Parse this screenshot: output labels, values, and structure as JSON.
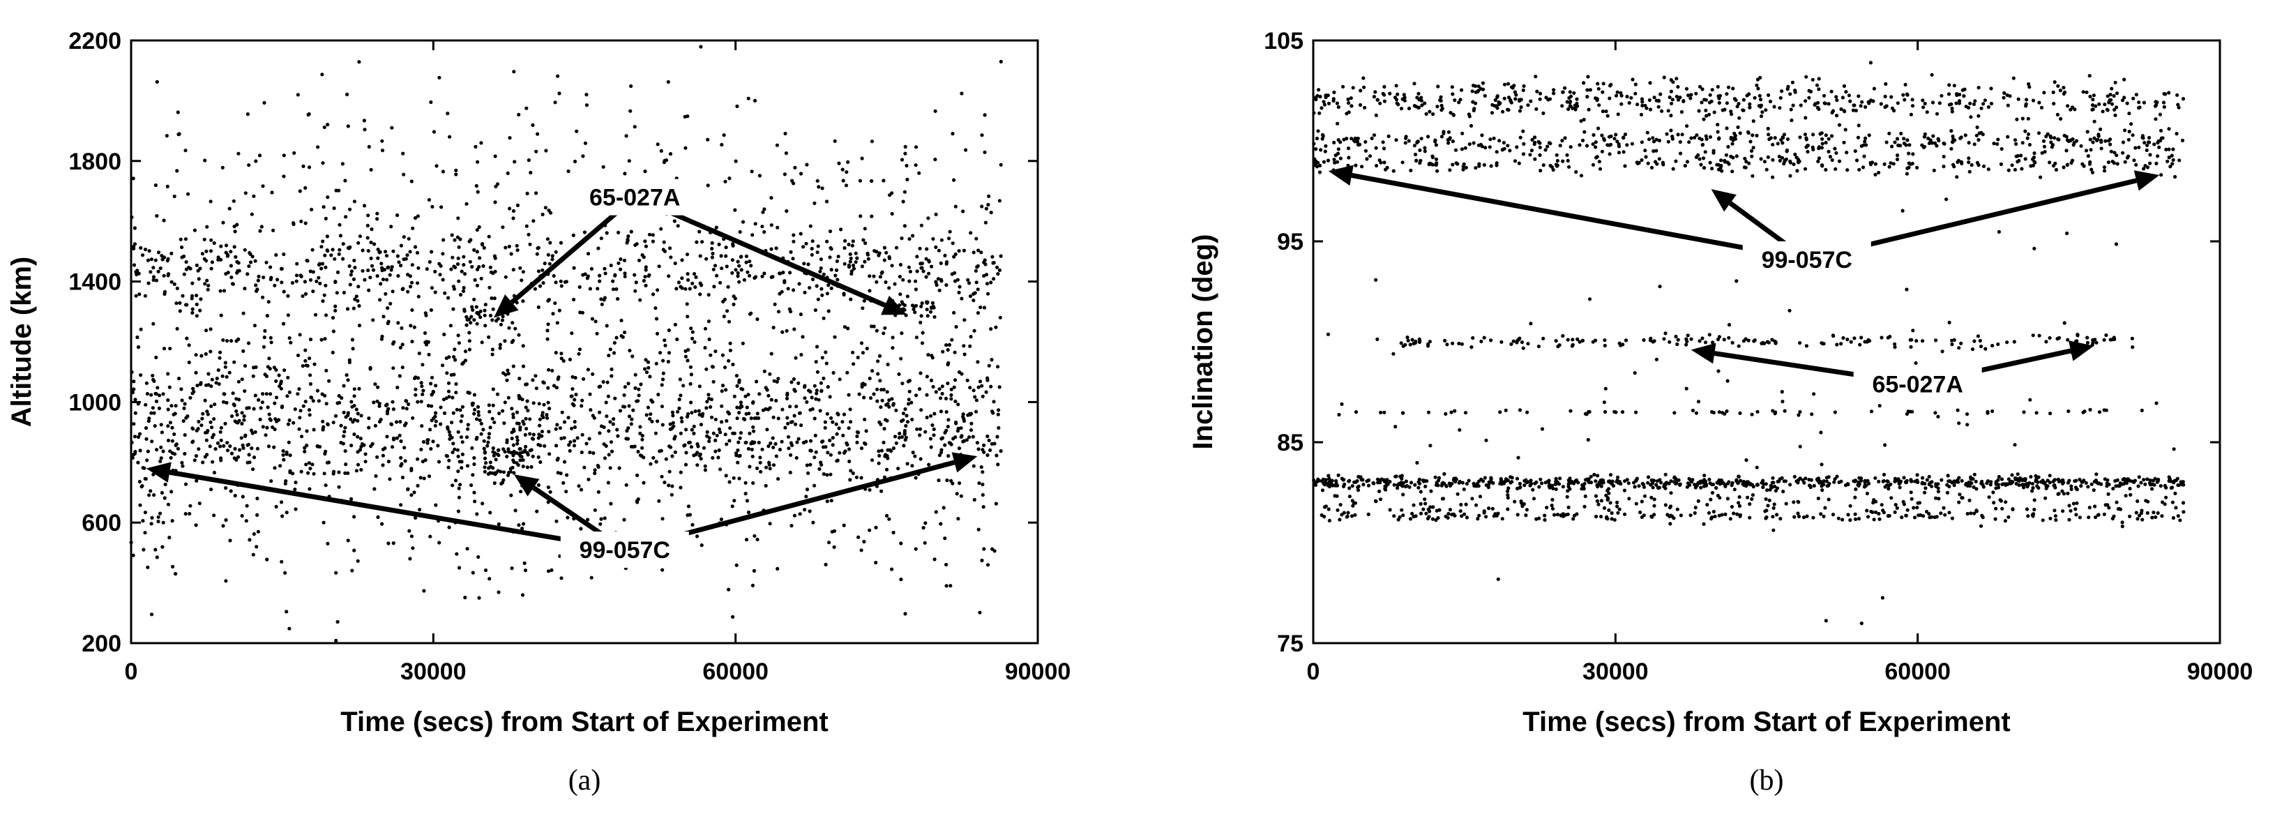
{
  "chart_data": [
    {
      "type": "scatter",
      "panel_label": "(a)",
      "xlabel": "Time (secs) from Start of Experiment",
      "ylabel": "Altitude (km)",
      "xlim": [
        0,
        90000
      ],
      "ylim": [
        200,
        2200
      ],
      "xticks": [
        "0",
        "30000",
        "60000",
        "90000"
      ],
      "yticks": [
        "200",
        "600",
        "1000",
        "1400",
        "1800",
        "2200"
      ],
      "point_color": "#000000",
      "series": [
        {
          "clusters": [
            {
              "x_range": [
                0,
                86400
              ],
              "y_center": 1450,
              "y_spread": 60,
              "count": 520
            },
            {
              "x_range": [
                0,
                86400
              ],
              "y_center": 960,
              "y_spread": 80,
              "count": 620
            },
            {
              "x_range": [
                0,
                86400
              ],
              "y_center": 830,
              "y_spread": 60,
              "count": 380
            },
            {
              "x_range": [
                0,
                86400
              ],
              "y_center": 1150,
              "y_spread": 260,
              "count": 900
            },
            {
              "x_range": [
                0,
                86400
              ],
              "y_center": 1750,
              "y_spread": 180,
              "count": 260
            },
            {
              "x_range": [
                0,
                86400
              ],
              "y_center": 600,
              "y_spread": 140,
              "count": 260
            },
            {
              "x_range": [
                33000,
                38000
              ],
              "y_center": 1290,
              "y_spread": 20,
              "count": 30
            },
            {
              "x_range": [
                75000,
                80000
              ],
              "y_center": 1310,
              "y_spread": 20,
              "count": 30
            },
            {
              "x_range": [
                35000,
                40000
              ],
              "y_center": 810,
              "y_spread": 40,
              "count": 60
            }
          ]
        }
      ],
      "annotations": [
        {
          "text": "65-027A",
          "x": 50000,
          "y": 1680,
          "arrows_to": [
            [
              36000,
              1280
            ],
            [
              77000,
              1290
            ]
          ]
        },
        {
          "text": "99-057C",
          "x": 49000,
          "y": 510,
          "arrows_to": [
            [
              1500,
              780
            ],
            [
              84000,
              820
            ],
            [
              38000,
              760
            ]
          ]
        }
      ]
    },
    {
      "type": "scatter",
      "panel_label": "(b)",
      "xlabel": "Time (secs) from Start of Experiment",
      "ylabel": "Inclination (deg)",
      "xlim": [
        0,
        90000
      ],
      "ylim": [
        75,
        105
      ],
      "xticks": [
        "0",
        "30000",
        "60000",
        "90000"
      ],
      "yticks": [
        "75",
        "85",
        "95",
        "105"
      ],
      "point_color": "#000000",
      "series": [
        {
          "clusters": [
            {
              "x_range": [
                0,
                86400
              ],
              "y_center": 102.0,
              "y_spread": 0.5,
              "count": 520
            },
            {
              "x_range": [
                0,
                86400
              ],
              "y_center": 100.0,
              "y_spread": 0.3,
              "count": 360
            },
            {
              "x_range": [
                0,
                86400
              ],
              "y_center": 98.9,
              "y_spread": 0.3,
              "count": 300
            },
            {
              "x_range": [
                0,
                86400
              ],
              "y_center": 83.0,
              "y_spread": 0.15,
              "count": 700
            },
            {
              "x_range": [
                0,
                86400
              ],
              "y_center": 82.0,
              "y_spread": 0.4,
              "count": 260
            },
            {
              "x_range": [
                0,
                86400
              ],
              "y_center": 81.3,
              "y_spread": 0.1,
              "count": 160
            },
            {
              "x_range": [
                8000,
                82000
              ],
              "y_center": 90.0,
              "y_spread": 0.15,
              "count": 170
            },
            {
              "x_range": [
                2000,
                82000
              ],
              "y_center": 86.5,
              "y_spread": 0.05,
              "count": 60
            },
            {
              "x_range": [
                0,
                86400
              ],
              "y_center": 87.0,
              "y_spread": 4.5,
              "count": 80
            }
          ]
        }
      ],
      "annotations": [
        {
          "text": "99-057C",
          "x": 49000,
          "y": 94.1,
          "arrows_to": [
            [
              1500,
              98.5
            ],
            [
              84000,
              98.3
            ],
            [
              39500,
              97.6
            ]
          ]
        },
        {
          "text": "65-027A",
          "x": 60000,
          "y": 87.9,
          "arrows_to": [
            [
              37500,
              89.6
            ],
            [
              77500,
              89.8
            ]
          ]
        }
      ]
    }
  ]
}
